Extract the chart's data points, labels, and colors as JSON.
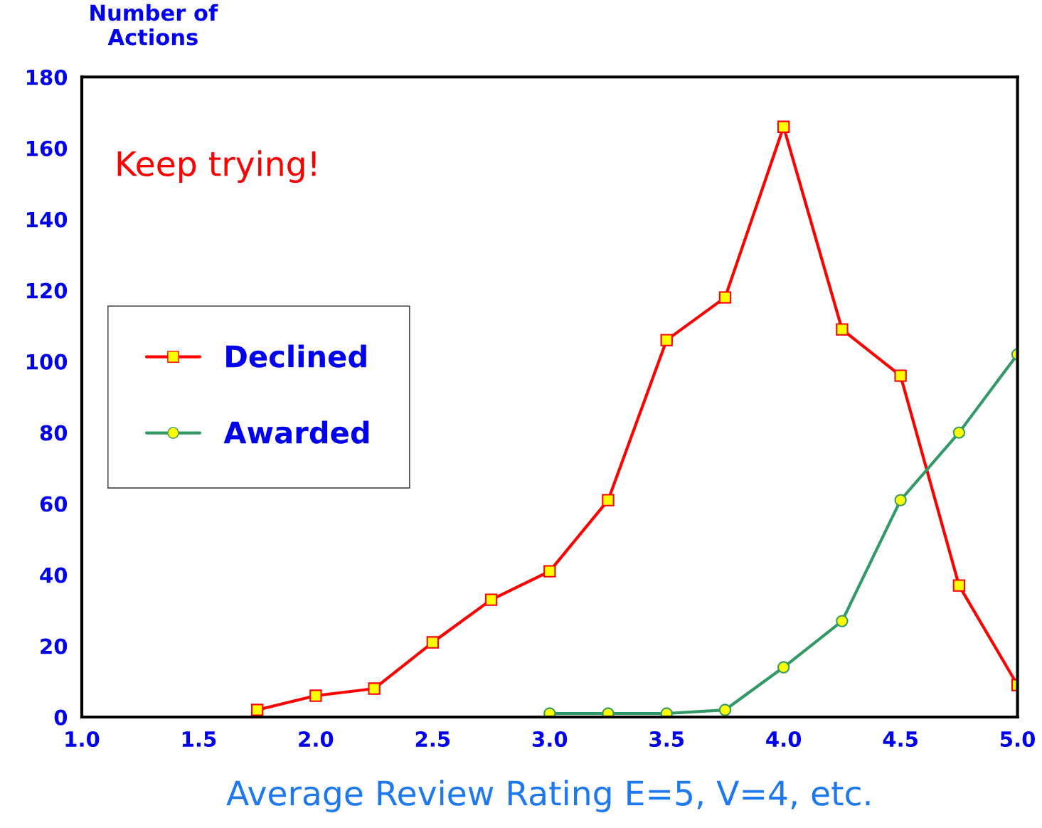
{
  "chart_data": {
    "type": "line",
    "ylabel": "Number of\nActions",
    "xlabel": "Average Review Rating E=5, V=4, etc.",
    "annotations": [
      "Keep trying!"
    ],
    "xlim": [
      1.0,
      5.0
    ],
    "xticks": [
      {
        "value": 1.0,
        "label": "1.0"
      },
      {
        "value": 1.5,
        "label": "1.5"
      },
      {
        "value": 2.0,
        "label": "2.0"
      },
      {
        "value": 2.5,
        "label": "2.5"
      },
      {
        "value": 3.0,
        "label": "3.0"
      },
      {
        "value": 3.5,
        "label": "3.5"
      },
      {
        "value": 4.0,
        "label": "4.0"
      },
      {
        "value": 4.5,
        "label": "4.5"
      },
      {
        "value": 5.0,
        "label": "5.0"
      }
    ],
    "ylim": [
      0,
      180
    ],
    "yticks": [
      0,
      20,
      40,
      60,
      80,
      100,
      120,
      140,
      160,
      180
    ],
    "grid": false,
    "legend": "left",
    "series": [
      {
        "name": "Declined",
        "color": "#ff0000",
        "marker": "square",
        "x": [
          1.75,
          2.0,
          2.25,
          2.5,
          2.75,
          3.0,
          3.25,
          3.5,
          3.75,
          4.0,
          4.25,
          4.5,
          4.75,
          5.0
        ],
        "values": [
          2,
          6,
          8,
          21,
          33,
          41,
          61,
          106,
          118,
          166,
          109,
          96,
          37,
          9
        ]
      },
      {
        "name": "Awarded",
        "color": "#339966",
        "marker": "circle",
        "x": [
          3.0,
          3.25,
          3.5,
          3.75,
          4.0,
          4.25,
          4.5,
          4.75,
          5.0
        ],
        "values": [
          1,
          1,
          1,
          2,
          14,
          27,
          61,
          80,
          102
        ]
      }
    ]
  }
}
